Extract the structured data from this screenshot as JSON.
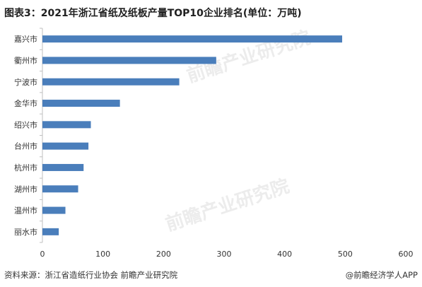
{
  "title": "图表3：2021年浙江省纸及纸板产量TOP10企业排名(单位：万吨)",
  "source": "资料来源：浙江省造纸行业协会 前瞻产业研究院",
  "credit": "@前瞻经济学人APP",
  "watermark": "前瞻产业研究院",
  "colors": {
    "bar": "#4a7ebb",
    "axis": "#bfbfbf",
    "text": "#333333"
  },
  "chart_data": {
    "type": "bar",
    "orientation": "horizontal",
    "title": "图表3：2021年浙江省纸及纸板产量TOP10企业排名(单位：万吨)",
    "categories": [
      "嘉兴市",
      "衢州市",
      "宁波市",
      "金华市",
      "绍兴市",
      "台州市",
      "杭州市",
      "湖州市",
      "温州市",
      "丽水市"
    ],
    "values": [
      495,
      287,
      226,
      128,
      80,
      76,
      68,
      59,
      38,
      27
    ],
    "xlim": [
      0,
      600
    ],
    "xticks": [
      0,
      100,
      200,
      300,
      400,
      500,
      600
    ],
    "xlabel": "",
    "ylabel": "",
    "grid": false,
    "legend": "none"
  }
}
